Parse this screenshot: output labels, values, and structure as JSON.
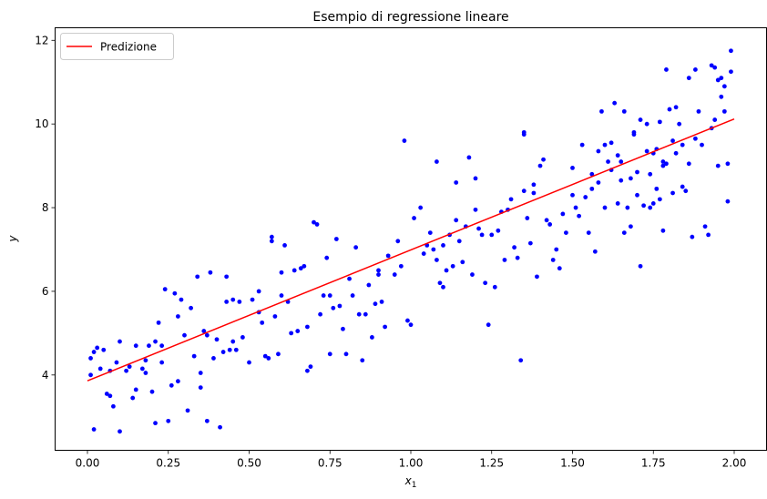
{
  "chart_data": {
    "type": "scatter",
    "title": "Esempio di regressione lineare",
    "xlabel": "x",
    "xlabel_sub": "1",
    "ylabel": "y",
    "xlim": [
      -0.1,
      2.1
    ],
    "ylim": [
      2.2,
      12.3
    ],
    "xticks": [
      0.0,
      0.25,
      0.5,
      0.75,
      1.0,
      1.25,
      1.5,
      1.75,
      2.0
    ],
    "xtick_labels": [
      "0.00",
      "0.25",
      "0.50",
      "0.75",
      "1.00",
      "1.25",
      "1.50",
      "1.75",
      "2.00"
    ],
    "yticks": [
      4,
      6,
      8,
      10,
      12
    ],
    "ytick_labels": [
      "4",
      "6",
      "8",
      "10",
      "12"
    ],
    "grid": false,
    "legend_position": "top-left",
    "colors": {
      "points": "#0000ff",
      "line": "#ff0000"
    },
    "series": [
      {
        "type": "scatter",
        "points": [
          [
            0.01,
            4.0
          ],
          [
            0.01,
            4.4
          ],
          [
            0.02,
            2.7
          ],
          [
            0.02,
            4.55
          ],
          [
            0.03,
            4.65
          ],
          [
            0.04,
            4.15
          ],
          [
            0.05,
            4.6
          ],
          [
            0.06,
            3.55
          ],
          [
            0.07,
            4.1
          ],
          [
            0.07,
            3.5
          ],
          [
            0.08,
            3.25
          ],
          [
            0.09,
            4.3
          ],
          [
            0.1,
            4.8
          ],
          [
            0.1,
            2.65
          ],
          [
            0.12,
            4.1
          ],
          [
            0.13,
            4.2
          ],
          [
            0.14,
            3.45
          ],
          [
            0.15,
            3.65
          ],
          [
            0.17,
            4.15
          ],
          [
            0.18,
            4.35
          ],
          [
            0.18,
            4.05
          ],
          [
            0.19,
            4.7
          ],
          [
            0.2,
            3.6
          ],
          [
            0.21,
            2.85
          ],
          [
            0.21,
            4.8
          ],
          [
            0.22,
            5.25
          ],
          [
            0.23,
            4.7
          ],
          [
            0.23,
            4.3
          ],
          [
            0.24,
            6.05
          ],
          [
            0.25,
            2.9
          ],
          [
            0.26,
            3.75
          ],
          [
            0.27,
            5.95
          ],
          [
            0.28,
            5.4
          ],
          [
            0.28,
            3.85
          ],
          [
            0.29,
            5.8
          ],
          [
            0.31,
            3.15
          ],
          [
            0.32,
            5.6
          ],
          [
            0.33,
            4.45
          ],
          [
            0.34,
            6.35
          ],
          [
            0.35,
            3.7
          ],
          [
            0.35,
            4.05
          ],
          [
            0.36,
            5.05
          ],
          [
            0.37,
            4.95
          ],
          [
            0.37,
            2.9
          ],
          [
            0.38,
            6.45
          ],
          [
            0.39,
            4.4
          ],
          [
            0.4,
            4.85
          ],
          [
            0.41,
            2.75
          ],
          [
            0.42,
            4.55
          ],
          [
            0.43,
            6.35
          ],
          [
            0.43,
            5.75
          ],
          [
            0.44,
            4.6
          ],
          [
            0.45,
            5.8
          ],
          [
            0.46,
            4.6
          ],
          [
            0.47,
            5.75
          ],
          [
            0.48,
            4.9
          ],
          [
            0.5,
            4.3
          ],
          [
            0.51,
            5.8
          ],
          [
            0.53,
            6.0
          ],
          [
            0.53,
            5.5
          ],
          [
            0.54,
            5.25
          ],
          [
            0.55,
            4.45
          ],
          [
            0.56,
            4.4
          ],
          [
            0.57,
            7.3
          ],
          [
            0.57,
            7.2
          ],
          [
            0.58,
            5.4
          ],
          [
            0.59,
            4.5
          ],
          [
            0.6,
            6.45
          ],
          [
            0.61,
            7.1
          ],
          [
            0.62,
            5.75
          ],
          [
            0.63,
            5.0
          ],
          [
            0.64,
            6.5
          ],
          [
            0.65,
            5.05
          ],
          [
            0.66,
            6.55
          ],
          [
            0.67,
            6.6
          ],
          [
            0.68,
            4.1
          ],
          [
            0.68,
            5.15
          ],
          [
            0.69,
            4.2
          ],
          [
            0.7,
            7.65
          ],
          [
            0.71,
            7.6
          ],
          [
            0.72,
            5.45
          ],
          [
            0.73,
            5.9
          ],
          [
            0.74,
            6.8
          ],
          [
            0.75,
            5.9
          ],
          [
            0.75,
            4.5
          ],
          [
            0.76,
            5.6
          ],
          [
            0.77,
            7.25
          ],
          [
            0.78,
            5.65
          ],
          [
            0.79,
            5.1
          ],
          [
            0.8,
            4.5
          ],
          [
            0.81,
            6.3
          ],
          [
            0.82,
            5.9
          ],
          [
            0.83,
            7.05
          ],
          [
            0.84,
            5.45
          ],
          [
            0.85,
            4.35
          ],
          [
            0.86,
            5.45
          ],
          [
            0.87,
            6.15
          ],
          [
            0.88,
            4.9
          ],
          [
            0.89,
            5.7
          ],
          [
            0.9,
            6.5
          ],
          [
            0.91,
            5.75
          ],
          [
            0.92,
            5.15
          ],
          [
            0.93,
            6.85
          ],
          [
            0.95,
            6.4
          ],
          [
            0.96,
            7.2
          ],
          [
            0.97,
            6.6
          ],
          [
            0.98,
            9.6
          ],
          [
            0.99,
            5.3
          ],
          [
            1.0,
            5.2
          ],
          [
            1.01,
            7.75
          ],
          [
            1.03,
            8.0
          ],
          [
            1.04,
            6.9
          ],
          [
            1.06,
            7.4
          ],
          [
            1.07,
            7.0
          ],
          [
            1.08,
            6.75
          ],
          [
            1.08,
            9.1
          ],
          [
            1.09,
            6.2
          ],
          [
            1.1,
            6.1
          ],
          [
            1.1,
            7.1
          ],
          [
            1.11,
            6.5
          ],
          [
            1.12,
            7.35
          ],
          [
            1.13,
            6.6
          ],
          [
            1.14,
            7.7
          ],
          [
            1.14,
            8.6
          ],
          [
            1.15,
            7.2
          ],
          [
            1.16,
            6.7
          ],
          [
            1.17,
            7.55
          ],
          [
            1.18,
            9.2
          ],
          [
            1.19,
            6.4
          ],
          [
            1.2,
            8.7
          ],
          [
            1.21,
            7.5
          ],
          [
            1.22,
            7.35
          ],
          [
            1.23,
            6.2
          ],
          [
            1.24,
            5.2
          ],
          [
            1.25,
            7.35
          ],
          [
            1.26,
            6.1
          ],
          [
            1.27,
            7.45
          ],
          [
            1.28,
            7.9
          ],
          [
            1.29,
            6.75
          ],
          [
            1.3,
            7.95
          ],
          [
            1.31,
            8.2
          ],
          [
            1.32,
            7.05
          ],
          [
            1.33,
            6.8
          ],
          [
            1.34,
            4.35
          ],
          [
            1.35,
            9.8
          ],
          [
            1.35,
            9.75
          ],
          [
            1.36,
            7.75
          ],
          [
            1.37,
            7.15
          ],
          [
            1.38,
            8.55
          ],
          [
            1.38,
            8.35
          ],
          [
            1.39,
            6.35
          ],
          [
            1.4,
            9.0
          ],
          [
            1.41,
            9.15
          ],
          [
            1.42,
            7.7
          ],
          [
            1.43,
            7.6
          ],
          [
            1.44,
            6.75
          ],
          [
            1.45,
            7.0
          ],
          [
            1.46,
            6.55
          ],
          [
            1.47,
            7.85
          ],
          [
            1.48,
            7.4
          ],
          [
            1.5,
            8.95
          ],
          [
            1.51,
            8.0
          ],
          [
            1.52,
            7.8
          ],
          [
            1.53,
            9.5
          ],
          [
            1.54,
            8.25
          ],
          [
            1.55,
            7.4
          ],
          [
            1.56,
            8.45
          ],
          [
            1.57,
            6.95
          ],
          [
            1.58,
            8.6
          ],
          [
            1.59,
            10.3
          ],
          [
            1.6,
            9.5
          ],
          [
            1.61,
            9.1
          ],
          [
            1.62,
            8.9
          ],
          [
            1.63,
            10.5
          ],
          [
            1.64,
            8.1
          ],
          [
            1.65,
            8.65
          ],
          [
            1.66,
            7.4
          ],
          [
            1.67,
            8.0
          ],
          [
            1.68,
            7.55
          ],
          [
            1.69,
            9.8
          ],
          [
            1.7,
            8.85
          ],
          [
            1.71,
            6.6
          ],
          [
            1.72,
            8.05
          ],
          [
            1.73,
            9.35
          ],
          [
            1.74,
            8.8
          ],
          [
            1.74,
            8.0
          ],
          [
            1.75,
            8.1
          ],
          [
            1.76,
            9.4
          ],
          [
            1.77,
            10.05
          ],
          [
            1.78,
            7.45
          ],
          [
            1.78,
            9.0
          ],
          [
            1.79,
            9.05
          ],
          [
            1.8,
            10.35
          ],
          [
            1.81,
            8.35
          ],
          [
            1.82,
            9.3
          ],
          [
            1.83,
            10.0
          ],
          [
            1.84,
            8.5
          ],
          [
            1.85,
            8.4
          ],
          [
            1.86,
            9.05
          ],
          [
            1.87,
            7.3
          ],
          [
            1.88,
            11.3
          ],
          [
            1.88,
            9.65
          ],
          [
            1.89,
            10.3
          ],
          [
            1.9,
            9.5
          ],
          [
            1.91,
            7.55
          ],
          [
            1.92,
            7.35
          ],
          [
            1.93,
            9.9
          ],
          [
            1.94,
            10.1
          ],
          [
            1.95,
            9.0
          ],
          [
            1.96,
            11.1
          ],
          [
            1.97,
            10.3
          ],
          [
            1.98,
            8.15
          ],
          [
            1.98,
            9.05
          ],
          [
            1.99,
            11.75
          ],
          [
            1.99,
            11.25
          ],
          [
            1.93,
            11.4
          ],
          [
            1.94,
            11.35
          ],
          [
            1.95,
            11.05
          ],
          [
            1.96,
            10.65
          ],
          [
            1.97,
            10.9
          ],
          [
            1.86,
            11.1
          ],
          [
            1.84,
            9.5
          ],
          [
            1.82,
            10.4
          ],
          [
            1.81,
            9.6
          ],
          [
            1.79,
            11.3
          ],
          [
            1.78,
            9.1
          ],
          [
            1.77,
            8.2
          ],
          [
            1.76,
            8.45
          ],
          [
            1.75,
            9.3
          ],
          [
            1.73,
            10.0
          ],
          [
            1.71,
            10.1
          ],
          [
            1.7,
            8.3
          ],
          [
            1.69,
            9.75
          ],
          [
            1.68,
            8.7
          ],
          [
            1.66,
            10.3
          ],
          [
            1.64,
            9.25
          ],
          [
            1.62,
            9.55
          ],
          [
            1.6,
            8.0
          ],
          [
            1.58,
            9.35
          ],
          [
            1.56,
            8.8
          ],
          [
            0.15,
            4.7
          ],
          [
            0.3,
            4.95
          ],
          [
            0.45,
            4.8
          ],
          [
            0.6,
            5.9
          ],
          [
            0.9,
            6.4
          ],
          [
            1.05,
            7.1
          ],
          [
            1.2,
            7.95
          ],
          [
            1.35,
            8.4
          ],
          [
            1.5,
            8.3
          ],
          [
            1.65,
            9.1
          ]
        ]
      },
      {
        "type": "line",
        "name": "Predizione",
        "x": [
          0.0,
          2.0
        ],
        "y": [
          3.86,
          10.12
        ]
      }
    ]
  }
}
